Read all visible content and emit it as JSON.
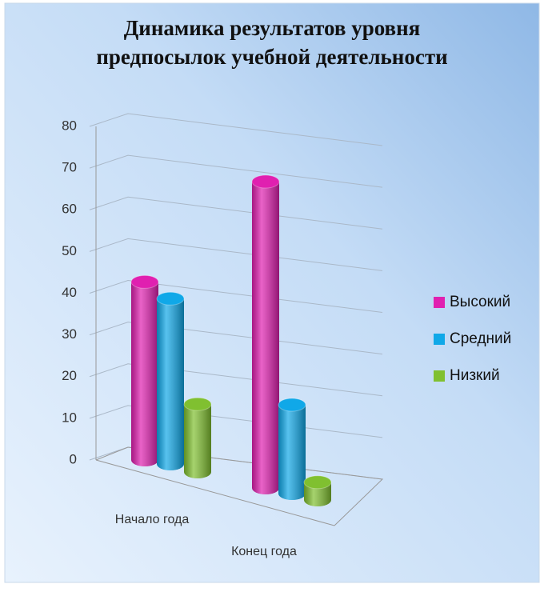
{
  "chart_data": {
    "type": "bar3d",
    "title": [
      "Динамика результатов уровня",
      "предпосылок учебной деятельности"
    ],
    "categories": [
      "Начало года",
      "Конец года"
    ],
    "series": [
      {
        "name": "Высокий",
        "color": "#e020b0",
        "values": [
          42,
          69
        ]
      },
      {
        "name": "Средний",
        "color": "#10a8e8",
        "values": [
          39,
          20
        ]
      },
      {
        "name": "Низкий",
        "color": "#80c030",
        "values": [
          16,
          4
        ]
      }
    ],
    "ylim": [
      0,
      80
    ],
    "yticks": [
      0,
      10,
      20,
      30,
      40,
      50,
      60,
      70,
      80
    ],
    "grid": true,
    "legend": "right"
  }
}
